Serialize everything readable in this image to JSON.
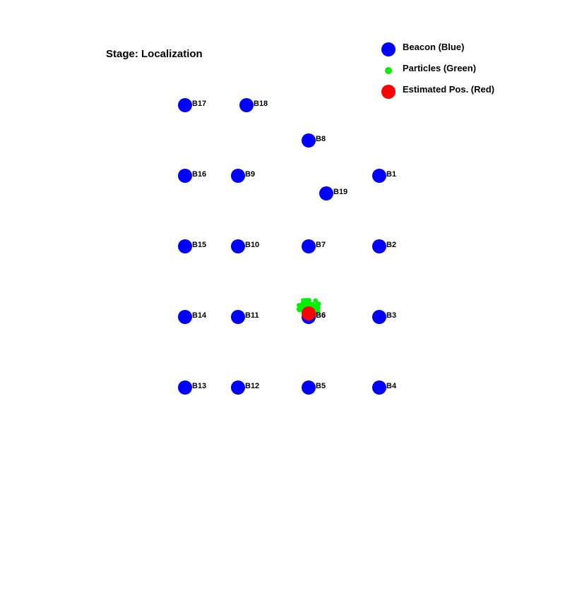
{
  "stage": {
    "label": "Stage: Localization"
  },
  "legend": [
    {
      "label": "Beacon (Blue)",
      "color": "#0000ff",
      "icon": "large-circle"
    },
    {
      "label": "Particles (Green)",
      "color": "#00ee00",
      "icon": "small-dot"
    },
    {
      "label": "Estimated Pos. (Red)",
      "color": "#ff0000",
      "icon": "large-circle"
    }
  ],
  "colors": {
    "beacon": "#0000ff",
    "particle": "#00ee00",
    "estimate": "#ff0000"
  },
  "beacons": [
    {
      "id": "B1",
      "x": 4,
      "y": 4
    },
    {
      "id": "B2",
      "x": 4,
      "y": 3
    },
    {
      "id": "B3",
      "x": 4,
      "y": 2
    },
    {
      "id": "B4",
      "x": 4,
      "y": 1
    },
    {
      "id": "B5",
      "x": 3,
      "y": 1
    },
    {
      "id": "B6",
      "x": 3,
      "y": 2
    },
    {
      "id": "B7",
      "x": 3,
      "y": 3
    },
    {
      "id": "B8",
      "x": 3,
      "y": 4.5
    },
    {
      "id": "B9",
      "x": 2,
      "y": 4
    },
    {
      "id": "B10",
      "x": 2,
      "y": 3
    },
    {
      "id": "B11",
      "x": 2,
      "y": 2
    },
    {
      "id": "B12",
      "x": 2,
      "y": 1
    },
    {
      "id": "B13",
      "x": 1.25,
      "y": 1
    },
    {
      "id": "B14",
      "x": 1.25,
      "y": 2
    },
    {
      "id": "B15",
      "x": 1.25,
      "y": 3
    },
    {
      "id": "B16",
      "x": 1.25,
      "y": 4
    },
    {
      "id": "B17",
      "x": 1.25,
      "y": 5
    },
    {
      "id": "B18",
      "x": 2.12,
      "y": 5
    },
    {
      "id": "B19",
      "x": 3.25,
      "y": 3.75
    }
  ],
  "estimate": {
    "x": 3,
    "y": 2.05
  }
}
